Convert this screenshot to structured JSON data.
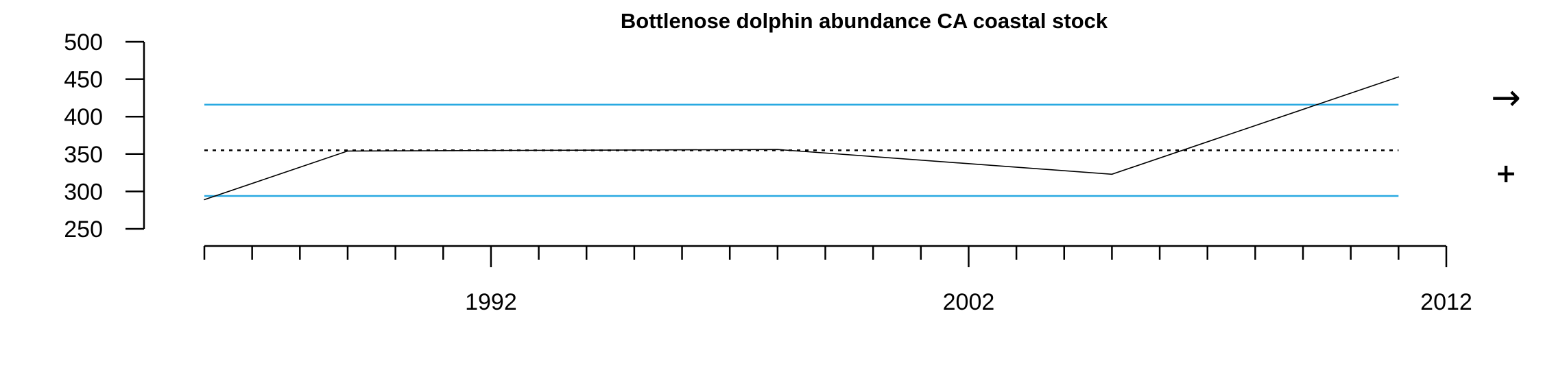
{
  "chart_data": {
    "type": "line",
    "title": "Bottlenose dolphin abundance CA coastal stock",
    "xlabel": "",
    "ylabel": "",
    "xlim": [
      1986,
      2012
    ],
    "ylim": [
      250,
      500
    ],
    "y_ticks": [
      250,
      300,
      350,
      400,
      450,
      500
    ],
    "x_major_ticks": [
      1992,
      2002,
      2012
    ],
    "x_minor_ticks_from": 1986,
    "x_minor_ticks_to": 2011,
    "series": [
      {
        "color": "#000000",
        "style": "solid",
        "points": [
          {
            "x": 1986,
            "y": 289
          },
          {
            "x": 1989,
            "y": 354
          },
          {
            "x": 1998,
            "y": 356
          },
          {
            "x": 2005,
            "y": 323
          },
          {
            "x": 2011,
            "y": 453
          }
        ]
      }
    ],
    "reference_lines": [
      {
        "role": "mean",
        "y": 355,
        "style": "dotted",
        "color": "#000000"
      },
      {
        "role": "upper",
        "y": 416,
        "style": "solid",
        "color": "#29a9e1"
      },
      {
        "role": "lower",
        "y": 294,
        "style": "solid",
        "color": "#29a9e1"
      }
    ],
    "reference_span": [
      1986,
      2011
    ],
    "legend": "none",
    "grid": false,
    "indicators": {
      "trend": "→",
      "status": "+"
    }
  }
}
